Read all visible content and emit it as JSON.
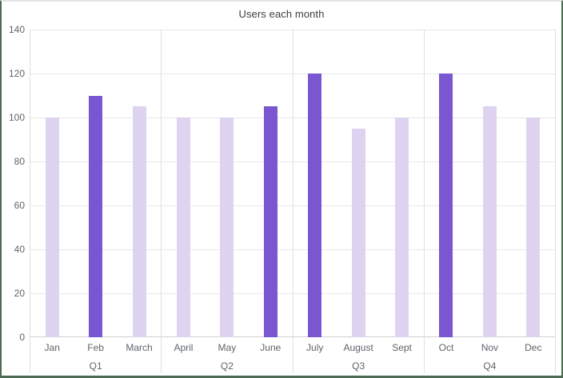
{
  "window": {
    "background": "#ffffff",
    "frame_border_color": "#4b6b54",
    "frame_top_border_color": "#e4e4e4"
  },
  "chart_data": {
    "type": "bar",
    "title": "Users each month",
    "categories": [
      "Jan",
      "Feb",
      "March",
      "April",
      "May",
      "June",
      "July",
      "August",
      "Sept",
      "Oct",
      "Nov",
      "Dec"
    ],
    "values": [
      100,
      110,
      105,
      100,
      100,
      105,
      120,
      95,
      100,
      120,
      105,
      100
    ],
    "highlighted": [
      false,
      true,
      false,
      false,
      false,
      true,
      true,
      false,
      false,
      true,
      false,
      false
    ],
    "groups": [
      {
        "label": "Q1",
        "months": [
          "Jan",
          "Feb",
          "March"
        ],
        "values": [
          100,
          110,
          105
        ],
        "highlighted": [
          false,
          true,
          false
        ]
      },
      {
        "label": "Q2",
        "months": [
          "April",
          "May",
          "June"
        ],
        "values": [
          100,
          100,
          105
        ],
        "highlighted": [
          false,
          false,
          true
        ]
      },
      {
        "label": "Q3",
        "months": [
          "July",
          "August",
          "Sept"
        ],
        "values": [
          120,
          95,
          100
        ],
        "highlighted": [
          true,
          false,
          false
        ]
      },
      {
        "label": "Q4",
        "months": [
          "Oct",
          "Nov",
          "Dec"
        ],
        "values": [
          120,
          105,
          100
        ],
        "highlighted": [
          true,
          false,
          false
        ]
      }
    ],
    "xlabel": "",
    "ylabel": "",
    "y_ticks": [
      140,
      120,
      100,
      80,
      60,
      40,
      20,
      0
    ],
    "ylim": [
      0,
      140
    ],
    "grid": true,
    "legend": "none",
    "colors": {
      "bar_default": "#ded4f2",
      "bar_highlight": "#7a56d0",
      "gridline": "#e8e8e8",
      "axis_line": "#cfcfcf",
      "separator": "#e0e0e0",
      "title_text": "#3c4043",
      "label_text": "#5f6368"
    }
  }
}
